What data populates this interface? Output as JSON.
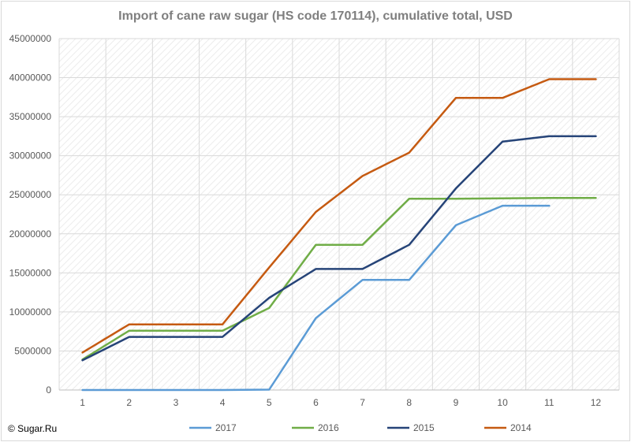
{
  "chart_data": {
    "type": "line",
    "title": "Import of cane raw sugar (HS code 170114), cumulative total, USD",
    "xlabel": "",
    "ylabel": "",
    "ylim": [
      0,
      45000000
    ],
    "y_ticks": [
      "0",
      "5000000",
      "10000000",
      "15000000",
      "20000000",
      "25000000",
      "30000000",
      "35000000",
      "40000000",
      "45000000"
    ],
    "categories": [
      "1",
      "2",
      "3",
      "4",
      "5",
      "6",
      "7",
      "8",
      "9",
      "10",
      "11",
      "12"
    ],
    "grid": true,
    "legend_position": "bottom",
    "series": [
      {
        "name": "2017",
        "color": "#5b9bd5",
        "values": [
          0,
          0,
          0,
          0,
          50000,
          9200000,
          14100000,
          14100000,
          21100000,
          23600000,
          23600000,
          null
        ]
      },
      {
        "name": "2016",
        "color": "#70ad47",
        "values": [
          3900000,
          7600000,
          7600000,
          7600000,
          10500000,
          18600000,
          18600000,
          24500000,
          24500000,
          24550000,
          24600000,
          24600000
        ]
      },
      {
        "name": "2015",
        "color": "#264478",
        "values": [
          3800000,
          6800000,
          6800000,
          6800000,
          11800000,
          15500000,
          15500000,
          18600000,
          25800000,
          31800000,
          32500000,
          32500000
        ]
      },
      {
        "name": "2014",
        "color": "#c55a11",
        "values": [
          4800000,
          8400000,
          8400000,
          8400000,
          15700000,
          22800000,
          27400000,
          30400000,
          37400000,
          37400000,
          39800000,
          39800000
        ]
      }
    ]
  },
  "footer": {
    "copyright": "© Sugar.Ru"
  }
}
